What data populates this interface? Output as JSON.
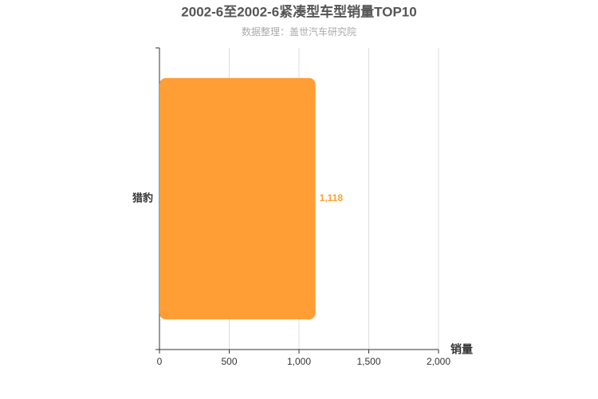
{
  "chart_data": {
    "type": "bar",
    "orientation": "horizontal",
    "title": "2002-6至2002-6紧凑型车型销量TOP10",
    "subtitle": "数据整理：盖世汽车研究院",
    "x_label": "销量",
    "categories": [
      "猎豹"
    ],
    "values": [
      1118
    ],
    "value_labels": [
      "1,118"
    ],
    "color": "#ff9e35",
    "xlim": [
      0,
      2000
    ],
    "xticks": [
      0,
      500,
      {
        "value": 1000,
        "label": "1,000"
      },
      {
        "value": 1500,
        "label": "1,500"
      },
      {
        "value": 2000,
        "label": "2,000"
      }
    ],
    "grid": true
  }
}
